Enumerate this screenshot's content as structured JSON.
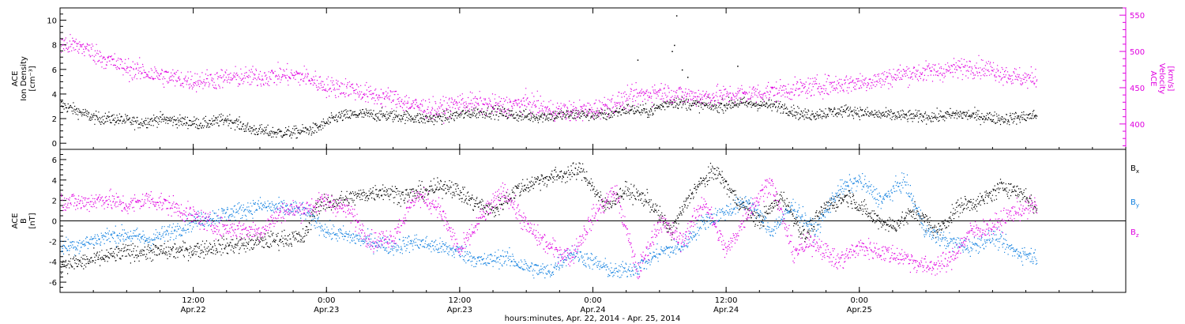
{
  "chart_data": [
    {
      "type": "scatter",
      "name": "ion-density-and-velocity",
      "x_range_hours": [
        0,
        96
      ],
      "left_axis": {
        "label_lines": [
          "ACE",
          "Ion Density",
          "[cm⁻³]"
        ],
        "ylim": [
          -0.5,
          11
        ],
        "ticks": [
          0,
          2,
          4,
          6,
          8,
          10
        ],
        "color": "#000000"
      },
      "right_axis": {
        "label_lines": [
          "ACE",
          "Velocity",
          "[km/s]"
        ],
        "ylim": [
          365,
          560
        ],
        "ticks": [
          400,
          450,
          500,
          550
        ],
        "color": "#e000e0"
      },
      "series": [
        {
          "axis": "left",
          "color": "#000000",
          "keypoints": [
            [
              0,
              3.2
            ],
            [
              3,
              2.1
            ],
            [
              5,
              2.0
            ],
            [
              7,
              1.7
            ],
            [
              9,
              2.0
            ],
            [
              11,
              1.8
            ],
            [
              13,
              1.6
            ],
            [
              15,
              2.0
            ],
            [
              17,
              1.2
            ],
            [
              19,
              0.9
            ],
            [
              21,
              0.9
            ],
            [
              23,
              1.2
            ],
            [
              25,
              2.2
            ],
            [
              27,
              2.4
            ],
            [
              29,
              2.3
            ],
            [
              31,
              2.2
            ],
            [
              33,
              2.0
            ],
            [
              35,
              2.2
            ],
            [
              37,
              2.5
            ],
            [
              39,
              2.6
            ],
            [
              41,
              2.3
            ],
            [
              43,
              2.2
            ],
            [
              45,
              2.3
            ],
            [
              47,
              2.4
            ],
            [
              49,
              2.3
            ],
            [
              51,
              2.8
            ],
            [
              53,
              2.6
            ],
            [
              55,
              3.4
            ],
            [
              57,
              3.2
            ],
            [
              59,
              3.0
            ],
            [
              61,
              3.3
            ],
            [
              63,
              3.2
            ],
            [
              65,
              3.0
            ],
            [
              67,
              2.3
            ],
            [
              69,
              2.5
            ],
            [
              71,
              2.7
            ],
            [
              73,
              2.4
            ],
            [
              75,
              2.3
            ],
            [
              77,
              2.2
            ],
            [
              79,
              2.2
            ],
            [
              81,
              2.4
            ],
            [
              83,
              2.2
            ],
            [
              85,
              2.0
            ],
            [
              87,
              2.2
            ],
            [
              88,
              2.3
            ]
          ],
          "spread": 0.35
        },
        {
          "axis": "right",
          "color": "#e000e0",
          "keypoints": [
            [
              0,
              510
            ],
            [
              2,
              507
            ],
            [
              4,
              490
            ],
            [
              6,
              477
            ],
            [
              8,
              470
            ],
            [
              10,
              464
            ],
            [
              12,
              460
            ],
            [
              14,
              462
            ],
            [
              16,
              465
            ],
            [
              18,
              465
            ],
            [
              20,
              468
            ],
            [
              22,
              466
            ],
            [
              24,
              452
            ],
            [
              26,
              450
            ],
            [
              28,
              440
            ],
            [
              30,
              436
            ],
            [
              32,
              425
            ],
            [
              34,
              420
            ],
            [
              36,
              430
            ],
            [
              38,
              428
            ],
            [
              40,
              425
            ],
            [
              42,
              430
            ],
            [
              44,
              420
            ],
            [
              46,
              418
            ],
            [
              48,
              420
            ],
            [
              50,
              430
            ],
            [
              52,
              440
            ],
            [
              54,
              445
            ],
            [
              56,
              440
            ],
            [
              58,
              438
            ],
            [
              60,
              440
            ],
            [
              62,
              442
            ],
            [
              64,
              445
            ],
            [
              66,
              448
            ],
            [
              68,
              452
            ],
            [
              70,
              455
            ],
            [
              72,
              458
            ],
            [
              74,
              462
            ],
            [
              76,
              470
            ],
            [
              78,
              472
            ],
            [
              80,
              475
            ],
            [
              82,
              480
            ],
            [
              84,
              475
            ],
            [
              86,
              465
            ],
            [
              88,
              462
            ]
          ],
          "spread": 10
        }
      ],
      "outliers": [
        [
          55.5,
          10.4
        ],
        [
          55.3,
          8.0
        ],
        [
          55.1,
          7.5
        ],
        [
          56.5,
          5.4
        ],
        [
          52.0,
          6.8
        ],
        [
          61.0,
          6.3
        ],
        [
          56.0,
          6.0
        ]
      ]
    },
    {
      "type": "scatter",
      "name": "magnetic-field-components",
      "x_range_hours": [
        0,
        96
      ],
      "left_axis": {
        "label_lines": [
          "ACE",
          "B",
          "[nT]"
        ],
        "ylim": [
          -7,
          7
        ],
        "ticks": [
          -6,
          -4,
          -2,
          0,
          2,
          4,
          6
        ],
        "color": "#000000"
      },
      "zero_line": true,
      "series": [
        {
          "name": "Bx",
          "legend_main": "B",
          "legend_sub": "x",
          "color": "#000000",
          "keypoints": [
            [
              0,
              -4.2
            ],
            [
              2,
              -4.0
            ],
            [
              4,
              -3.5
            ],
            [
              6,
              -3.0
            ],
            [
              8,
              -3.0
            ],
            [
              10,
              -2.9
            ],
            [
              12,
              -2.8
            ],
            [
              14,
              -2.5
            ],
            [
              16,
              -2.3
            ],
            [
              18,
              -2.0
            ],
            [
              20,
              -1.7
            ],
            [
              22,
              -1.6
            ],
            [
              23,
              1.5
            ],
            [
              25,
              2.0
            ],
            [
              27,
              2.5
            ],
            [
              29,
              3.0
            ],
            [
              31,
              2.5
            ],
            [
              33,
              3.0
            ],
            [
              35,
              3.5
            ],
            [
              37,
              2.0
            ],
            [
              39,
              1.0
            ],
            [
              41,
              3.0
            ],
            [
              43,
              4.0
            ],
            [
              45,
              4.5
            ],
            [
              47,
              5.0
            ],
            [
              49,
              1.5
            ],
            [
              51,
              3.0
            ],
            [
              53,
              2.0
            ],
            [
              55,
              -1.0
            ],
            [
              57,
              3.0
            ],
            [
              59,
              5.0
            ],
            [
              61,
              2.0
            ],
            [
              63,
              0.0
            ],
            [
              65,
              2.5
            ],
            [
              67,
              -1.5
            ],
            [
              69,
              1.5
            ],
            [
              71,
              2.5
            ],
            [
              73,
              0.5
            ],
            [
              75,
              -0.5
            ],
            [
              77,
              1.0
            ],
            [
              79,
              -1.0
            ],
            [
              81,
              1.5
            ],
            [
              83,
              2.0
            ],
            [
              85,
              3.5
            ],
            [
              87,
              2.5
            ],
            [
              88,
              1.0
            ]
          ],
          "spread": 0.6
        },
        {
          "name": "By",
          "legend_main": "B",
          "legend_sub": "y",
          "color": "#1180e0",
          "keypoints": [
            [
              0,
              -2.5
            ],
            [
              2,
              -2.2
            ],
            [
              4,
              -1.5
            ],
            [
              6,
              -1.3
            ],
            [
              8,
              -1.8
            ],
            [
              10,
              -1.0
            ],
            [
              12,
              0.0
            ],
            [
              14,
              0.5
            ],
            [
              16,
              1.0
            ],
            [
              18,
              1.5
            ],
            [
              20,
              1.3
            ],
            [
              22,
              1.0
            ],
            [
              24,
              -1.0
            ],
            [
              26,
              -1.5
            ],
            [
              28,
              -2.0
            ],
            [
              30,
              -2.5
            ],
            [
              32,
              -2.0
            ],
            [
              34,
              -2.5
            ],
            [
              36,
              -3.0
            ],
            [
              38,
              -4.0
            ],
            [
              40,
              -3.5
            ],
            [
              42,
              -4.5
            ],
            [
              44,
              -5.0
            ],
            [
              46,
              -3.0
            ],
            [
              48,
              -4.0
            ],
            [
              50,
              -5.0
            ],
            [
              52,
              -4.5
            ],
            [
              54,
              -3.0
            ],
            [
              56,
              -2.5
            ],
            [
              58,
              0.0
            ],
            [
              60,
              1.0
            ],
            [
              62,
              2.0
            ],
            [
              64,
              -1.0
            ],
            [
              66,
              1.5
            ],
            [
              68,
              -1.0
            ],
            [
              70,
              3.0
            ],
            [
              72,
              4.0
            ],
            [
              74,
              2.0
            ],
            [
              76,
              4.0
            ],
            [
              78,
              -1.0
            ],
            [
              80,
              -2.0
            ],
            [
              82,
              -2.5
            ],
            [
              84,
              -1.5
            ],
            [
              86,
              -3.0
            ],
            [
              88,
              -3.5
            ]
          ],
          "spread": 0.6
        },
        {
          "name": "Bz",
          "legend_main": "B",
          "legend_sub": "z",
          "color": "#e000e0",
          "keypoints": [
            [
              0,
              2.0
            ],
            [
              2,
              1.8
            ],
            [
              4,
              2.2
            ],
            [
              6,
              1.5
            ],
            [
              8,
              2.2
            ],
            [
              10,
              1.5
            ],
            [
              12,
              0.5
            ],
            [
              14,
              -0.5
            ],
            [
              16,
              -0.8
            ],
            [
              18,
              -1.0
            ],
            [
              20,
              1.0
            ],
            [
              22,
              1.2
            ],
            [
              24,
              2.0
            ],
            [
              26,
              1.0
            ],
            [
              28,
              -2.0
            ],
            [
              30,
              -1.5
            ],
            [
              32,
              2.5
            ],
            [
              34,
              1.5
            ],
            [
              36,
              -3.0
            ],
            [
              38,
              0.5
            ],
            [
              40,
              3.0
            ],
            [
              42,
              -0.5
            ],
            [
              44,
              -2.5
            ],
            [
              46,
              -3.5
            ],
            [
              48,
              0.5
            ],
            [
              50,
              3.0
            ],
            [
              52,
              -5.0
            ],
            [
              54,
              0.0
            ],
            [
              56,
              -2.0
            ],
            [
              58,
              2.0
            ],
            [
              60,
              -3.0
            ],
            [
              62,
              1.0
            ],
            [
              64,
              4.0
            ],
            [
              66,
              -3.0
            ],
            [
              68,
              -2.0
            ],
            [
              70,
              -4.0
            ],
            [
              72,
              -2.5
            ],
            [
              74,
              -3.0
            ],
            [
              76,
              -3.5
            ],
            [
              78,
              -4.5
            ],
            [
              80,
              -4.0
            ],
            [
              82,
              -1.0
            ],
            [
              84,
              -0.5
            ],
            [
              86,
              1.0
            ],
            [
              88,
              1.5
            ]
          ],
          "spread": 0.7
        }
      ]
    }
  ],
  "x_axis": {
    "ticks": [
      {
        "hour": 12,
        "time": "12:00",
        "date": "Apr.22"
      },
      {
        "hour": 24,
        "time": "0:00",
        "date": "Apr.23"
      },
      {
        "hour": 36,
        "time": "12:00",
        "date": "Apr.23"
      },
      {
        "hour": 48,
        "time": "0:00",
        "date": "Apr.24"
      },
      {
        "hour": 60,
        "time": "12:00",
        "date": "Apr.24"
      },
      {
        "hour": 72,
        "time": "0:00",
        "date": "Apr.25"
      }
    ],
    "title": "hours:minutes, Apr. 22, 2014 - Apr. 25, 2014"
  }
}
